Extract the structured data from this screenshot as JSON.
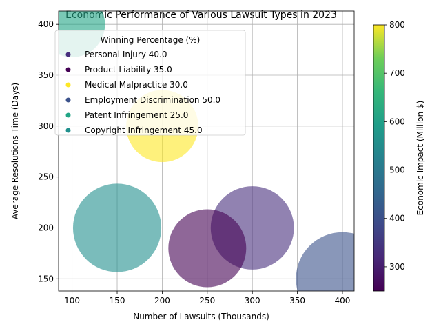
{
  "chart_data": {
    "type": "scatter",
    "title": "Economic Performance of Various Lawsuit Types in 2023",
    "xlabel": "Number of Lawsuits (Thousands)",
    "ylabel": "Average Resolutions Time (Days)",
    "xlim": [
      85,
      413
    ],
    "ylim": [
      138,
      413
    ],
    "xticks": [
      100,
      150,
      200,
      250,
      300,
      350,
      400
    ],
    "yticks": [
      150,
      200,
      250,
      300,
      350,
      400
    ],
    "grid": true,
    "legend": {
      "title": "Winning Percentage (%)",
      "placement": "upper-left"
    },
    "colorbar": {
      "label": "Economic Impact (Million $)",
      "range": [
        250,
        800
      ],
      "ticks": [
        300,
        400,
        500,
        600,
        700,
        800
      ],
      "colormap": "viridis"
    },
    "points": [
      {
        "label": "Personal Injury 40.0",
        "x": 300,
        "y": 200,
        "winning_pct": 40.0,
        "impact": 300,
        "color": "#472f7d"
      },
      {
        "label": "Product Liability 35.0",
        "x": 250,
        "y": 180,
        "winning_pct": 35.0,
        "impact": 250,
        "color": "#440154"
      },
      {
        "label": "Medical Malpractice 30.0",
        "x": 200,
        "y": 300,
        "winning_pct": 30.0,
        "impact": 800,
        "color": "#fde725"
      },
      {
        "label": "Employment Discrimination 50.0",
        "x": 400,
        "y": 150,
        "winning_pct": 50.0,
        "impact": 400,
        "color": "#3b528b"
      },
      {
        "label": "Patent Infringement 25.0",
        "x": 100,
        "y": 400,
        "winning_pct": 25.0,
        "impact": 600,
        "color": "#21a585"
      },
      {
        "label": "Copyright Infringement 45.0",
        "x": 150,
        "y": 200,
        "winning_pct": 45.0,
        "impact": 500,
        "color": "#21908d"
      }
    ]
  }
}
